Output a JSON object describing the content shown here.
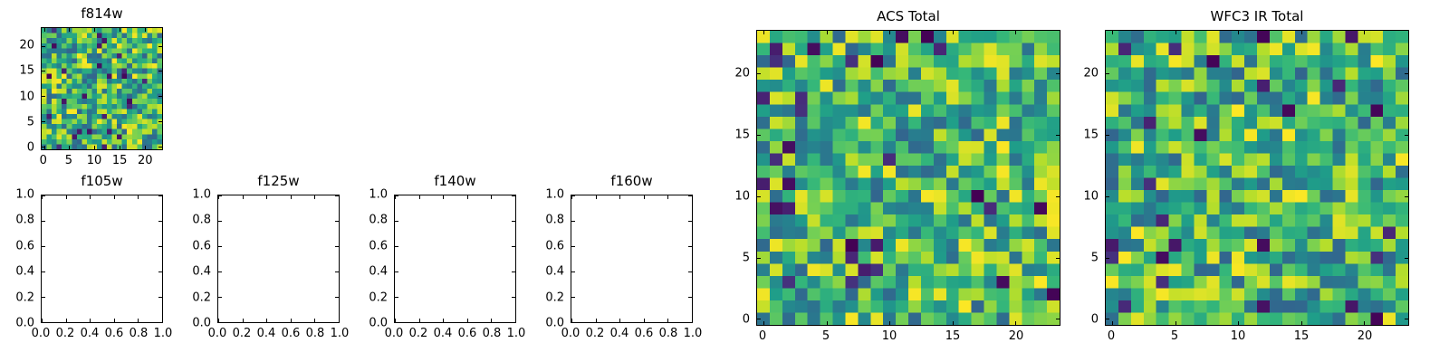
{
  "figure": {
    "background": "#ffffff",
    "text_color": "#000000",
    "colormap_name": "viridis",
    "colormap": [
      "#440154",
      "#482878",
      "#3e4989",
      "#31688e",
      "#26828e",
      "#1f9e89",
      "#35b779",
      "#6ece58",
      "#b5de2b",
      "#fde725"
    ],
    "noise": {
      "dark_prob": 0.045,
      "dark_scale": 0.15,
      "base": 0.32,
      "range": 0.68
    }
  },
  "subplots": {
    "f814w": {
      "title": "f814w",
      "kind": "heatmap",
      "grid_size": 24,
      "seed": 814,
      "xticks": [
        {
          "label": "0",
          "f": 0.0208
        },
        {
          "label": "5",
          "f": 0.2292
        },
        {
          "label": "10",
          "f": 0.4375
        },
        {
          "label": "15",
          "f": 0.6458
        },
        {
          "label": "20",
          "f": 0.8542
        }
      ],
      "yticks": [
        {
          "label": "0",
          "f": 0.0208
        },
        {
          "label": "5",
          "f": 0.2292
        },
        {
          "label": "10",
          "f": 0.4375
        },
        {
          "label": "15",
          "f": 0.6458
        },
        {
          "label": "20",
          "f": 0.8542
        }
      ]
    },
    "f105w": {
      "title": "f105w",
      "kind": "empty",
      "xticks": [
        {
          "label": "0.0",
          "f": 0
        },
        {
          "label": "0.2",
          "f": 0.2
        },
        {
          "label": "0.4",
          "f": 0.4
        },
        {
          "label": "0.6",
          "f": 0.6
        },
        {
          "label": "0.8",
          "f": 0.8
        },
        {
          "label": "1.0",
          "f": 1
        }
      ],
      "yticks": [
        {
          "label": "0.0",
          "f": 0
        },
        {
          "label": "0.2",
          "f": 0.2
        },
        {
          "label": "0.4",
          "f": 0.4
        },
        {
          "label": "0.6",
          "f": 0.6
        },
        {
          "label": "0.8",
          "f": 0.8
        },
        {
          "label": "1.0",
          "f": 1
        }
      ]
    },
    "f125w": {
      "title": "f125w",
      "kind": "empty",
      "xticks": [
        {
          "label": "0.0",
          "f": 0
        },
        {
          "label": "0.2",
          "f": 0.2
        },
        {
          "label": "0.4",
          "f": 0.4
        },
        {
          "label": "0.6",
          "f": 0.6
        },
        {
          "label": "0.8",
          "f": 0.8
        },
        {
          "label": "1.0",
          "f": 1
        }
      ],
      "yticks": [
        {
          "label": "0.0",
          "f": 0
        },
        {
          "label": "0.2",
          "f": 0.2
        },
        {
          "label": "0.4",
          "f": 0.4
        },
        {
          "label": "0.6",
          "f": 0.6
        },
        {
          "label": "0.8",
          "f": 0.8
        },
        {
          "label": "1.0",
          "f": 1
        }
      ]
    },
    "f140w": {
      "title": "f140w",
      "kind": "empty",
      "xticks": [
        {
          "label": "0.0",
          "f": 0
        },
        {
          "label": "0.2",
          "f": 0.2
        },
        {
          "label": "0.4",
          "f": 0.4
        },
        {
          "label": "0.6",
          "f": 0.6
        },
        {
          "label": "0.8",
          "f": 0.8
        },
        {
          "label": "1.0",
          "f": 1
        }
      ],
      "yticks": [
        {
          "label": "0.0",
          "f": 0
        },
        {
          "label": "0.2",
          "f": 0.2
        },
        {
          "label": "0.4",
          "f": 0.4
        },
        {
          "label": "0.6",
          "f": 0.6
        },
        {
          "label": "0.8",
          "f": 0.8
        },
        {
          "label": "1.0",
          "f": 1
        }
      ]
    },
    "f160w": {
      "title": "f160w",
      "kind": "empty",
      "xticks": [
        {
          "label": "0.0",
          "f": 0
        },
        {
          "label": "0.2",
          "f": 0.2
        },
        {
          "label": "0.4",
          "f": 0.4
        },
        {
          "label": "0.6",
          "f": 0.6
        },
        {
          "label": "0.8",
          "f": 0.8
        },
        {
          "label": "1.0",
          "f": 1
        }
      ],
      "yticks": [
        {
          "label": "0.0",
          "f": 0
        },
        {
          "label": "0.2",
          "f": 0.2
        },
        {
          "label": "0.4",
          "f": 0.4
        },
        {
          "label": "0.6",
          "f": 0.6
        },
        {
          "label": "0.8",
          "f": 0.8
        },
        {
          "label": "1.0",
          "f": 1
        }
      ]
    },
    "acs": {
      "title": "ACS Total",
      "kind": "heatmap",
      "grid_size": 24,
      "seed": 271,
      "xticks": [
        {
          "label": "0",
          "f": 0.0208
        },
        {
          "label": "5",
          "f": 0.2292
        },
        {
          "label": "10",
          "f": 0.4375
        },
        {
          "label": "15",
          "f": 0.6458
        },
        {
          "label": "20",
          "f": 0.8542
        }
      ],
      "yticks": [
        {
          "label": "0",
          "f": 0.0208
        },
        {
          "label": "5",
          "f": 0.2292
        },
        {
          "label": "10",
          "f": 0.4375
        },
        {
          "label": "15",
          "f": 0.6458
        },
        {
          "label": "20",
          "f": 0.8542
        }
      ]
    },
    "wfc3": {
      "title": "WFC3 IR Total",
      "kind": "heatmap",
      "grid_size": 24,
      "seed": 577,
      "xticks": [
        {
          "label": "0",
          "f": 0.0208
        },
        {
          "label": "5",
          "f": 0.2292
        },
        {
          "label": "10",
          "f": 0.4375
        },
        {
          "label": "15",
          "f": 0.6458
        },
        {
          "label": "20",
          "f": 0.8542
        }
      ],
      "yticks": [
        {
          "label": "0",
          "f": 0.0208
        },
        {
          "label": "5",
          "f": 0.2292
        },
        {
          "label": "10",
          "f": 0.4375
        },
        {
          "label": "15",
          "f": 0.6458
        },
        {
          "label": "20",
          "f": 0.8542
        }
      ]
    }
  },
  "chart_data": [
    {
      "type": "heatmap",
      "title": "f814w",
      "grid_size": [
        24,
        24
      ],
      "extent": [
        -0.5,
        23.5,
        -0.5,
        23.5
      ],
      "xticks": [
        0,
        5,
        10,
        15,
        20
      ],
      "yticks": [
        0,
        5,
        10,
        15,
        20
      ],
      "colormap": "viridis",
      "value_range": [
        0,
        1
      ],
      "values_note": "Unlabeled random-noise image; individual pixel values not resolvable. Regenerated from seed 814: ~4.5% dark outliers in [0,0.15], remainder uniform in [0.32,1.0]."
    },
    {
      "type": "scatter",
      "title": "f105w",
      "x": [],
      "y": [],
      "xlim": [
        0,
        1
      ],
      "ylim": [
        0,
        1
      ],
      "xticks": [
        0.0,
        0.2,
        0.4,
        0.6,
        0.8,
        1.0
      ],
      "yticks": [
        0.0,
        0.2,
        0.4,
        0.6,
        0.8,
        1.0
      ],
      "grid": false,
      "note": "empty axes, no data plotted"
    },
    {
      "type": "scatter",
      "title": "f125w",
      "x": [],
      "y": [],
      "xlim": [
        0,
        1
      ],
      "ylim": [
        0,
        1
      ],
      "xticks": [
        0.0,
        0.2,
        0.4,
        0.6,
        0.8,
        1.0
      ],
      "yticks": [
        0.0,
        0.2,
        0.4,
        0.6,
        0.8,
        1.0
      ],
      "grid": false,
      "note": "empty axes, no data plotted"
    },
    {
      "type": "scatter",
      "title": "f140w",
      "x": [],
      "y": [],
      "xlim": [
        0,
        1
      ],
      "ylim": [
        0,
        1
      ],
      "xticks": [
        0.0,
        0.2,
        0.4,
        0.6,
        0.8,
        1.0
      ],
      "yticks": [
        0.0,
        0.2,
        0.4,
        0.6,
        0.8,
        1.0
      ],
      "grid": false,
      "note": "empty axes, no data plotted"
    },
    {
      "type": "scatter",
      "title": "f160w",
      "x": [],
      "y": [],
      "xlim": [
        0,
        1
      ],
      "ylim": [
        0,
        1
      ],
      "xticks": [
        0.0,
        0.2,
        0.4,
        0.6,
        0.8,
        1.0
      ],
      "yticks": [
        0.0,
        0.2,
        0.4,
        0.6,
        0.8,
        1.0
      ],
      "grid": false,
      "note": "empty axes, no data plotted"
    },
    {
      "type": "heatmap",
      "title": "ACS Total",
      "grid_size": [
        24,
        24
      ],
      "extent": [
        -0.5,
        23.5,
        -0.5,
        23.5
      ],
      "xticks": [
        0,
        5,
        10,
        15,
        20
      ],
      "yticks": [
        0,
        5,
        10,
        15,
        20
      ],
      "colormap": "viridis",
      "value_range": [
        0,
        1
      ],
      "values_note": "Unlabeled random-noise image; individual pixel values not resolvable. Regenerated from seed 271: ~4.5% dark outliers in [0,0.15], remainder uniform in [0.32,1.0]."
    },
    {
      "type": "heatmap",
      "title": "WFC3 IR Total",
      "grid_size": [
        24,
        24
      ],
      "extent": [
        -0.5,
        23.5,
        -0.5,
        23.5
      ],
      "xticks": [
        0,
        5,
        10,
        15,
        20
      ],
      "yticks": [
        0,
        5,
        10,
        15,
        20
      ],
      "colormap": "viridis",
      "value_range": [
        0,
        1
      ],
      "values_note": "Unlabeled random-noise image; individual pixel values not resolvable. Regenerated from seed 577: ~4.5% dark outliers in [0,0.15], remainder uniform in [0.32,1.0]."
    }
  ]
}
